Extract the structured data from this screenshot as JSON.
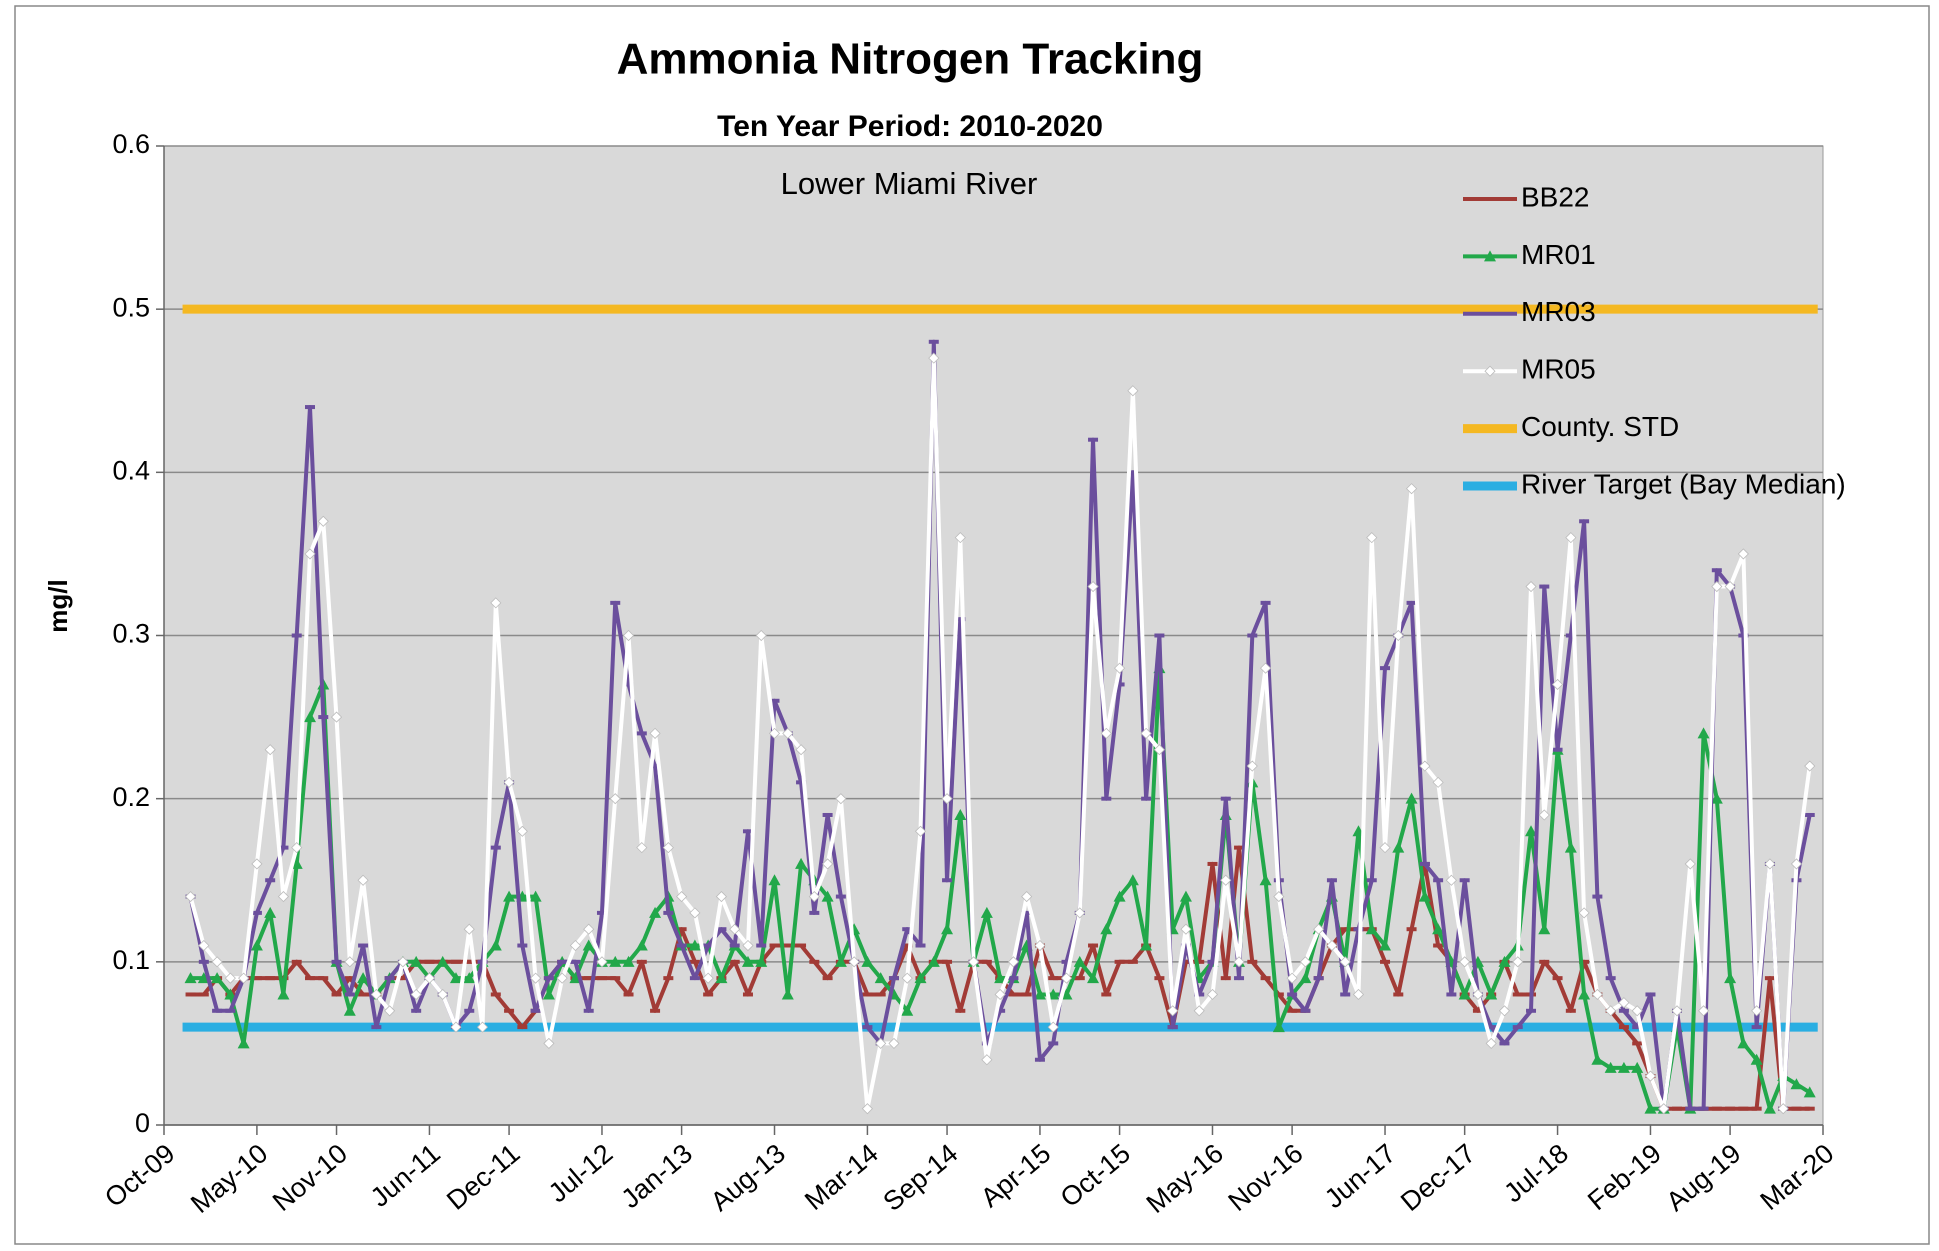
{
  "chart_data": {
    "type": "line",
    "title": "Ammonia Nitrogen Tracking",
    "subtitle": "Ten Year Period:  2010-2020",
    "annotation": "Lower Miami River",
    "y_label": "mg/l",
    "x": [
      "2009-12",
      "2010-01",
      "2010-02",
      "2010-03",
      "2010-04",
      "2010-05",
      "2010-06",
      "2010-07",
      "2010-08",
      "2010-09",
      "2010-10",
      "2010-11",
      "2010-12",
      "2011-01",
      "2011-02",
      "2011-03",
      "2011-04",
      "2011-05",
      "2011-06",
      "2011-07",
      "2011-08",
      "2011-09",
      "2011-10",
      "2011-11",
      "2011-12",
      "2012-01",
      "2012-02",
      "2012-03",
      "2012-04",
      "2012-05",
      "2012-06",
      "2012-07",
      "2012-08",
      "2012-09",
      "2012-10",
      "2012-11",
      "2012-12",
      "2013-01",
      "2013-02",
      "2013-03",
      "2013-04",
      "2013-05",
      "2013-06",
      "2013-07",
      "2013-08",
      "2013-09",
      "2013-10",
      "2013-11",
      "2013-12",
      "2014-01",
      "2014-02",
      "2014-03",
      "2014-04",
      "2014-05",
      "2014-06",
      "2014-07",
      "2014-08",
      "2014-09",
      "2014-10",
      "2014-11",
      "2014-12",
      "2015-01",
      "2015-02",
      "2015-03",
      "2015-04",
      "2015-05",
      "2015-06",
      "2015-07",
      "2015-08",
      "2015-09",
      "2015-10",
      "2015-11",
      "2015-12",
      "2016-01",
      "2016-02",
      "2016-03",
      "2016-04",
      "2016-05",
      "2016-06",
      "2016-07",
      "2016-08",
      "2016-09",
      "2016-10",
      "2016-11",
      "2016-12",
      "2017-01",
      "2017-02",
      "2017-03",
      "2017-04",
      "2017-05",
      "2017-06",
      "2017-07",
      "2017-08",
      "2017-09",
      "2017-10",
      "2017-11",
      "2017-12",
      "2018-01",
      "2018-02",
      "2018-03",
      "2018-04",
      "2018-05",
      "2018-06",
      "2018-07",
      "2018-08",
      "2018-09",
      "2018-10",
      "2018-11",
      "2018-12",
      "2019-01",
      "2019-02",
      "2019-03",
      "2019-04",
      "2019-05",
      "2019-06",
      "2019-07",
      "2019-08",
      "2019-09",
      "2019-10",
      "2019-11",
      "2019-12",
      "2020-01",
      "2020-02"
    ],
    "series": [
      {
        "name": "BB22",
        "color": "#a23b36",
        "marker": "dash",
        "values": [
          0.08,
          0.08,
          0.09,
          0.08,
          0.09,
          0.09,
          0.09,
          0.09,
          0.1,
          0.09,
          0.09,
          0.08,
          0.09,
          0.08,
          0.08,
          0.09,
          0.09,
          0.1,
          0.1,
          0.1,
          0.1,
          0.1,
          0.1,
          0.08,
          0.07,
          0.06,
          0.07,
          0.09,
          0.1,
          0.09,
          0.09,
          0.09,
          0.09,
          0.08,
          0.1,
          0.07,
          0.09,
          0.12,
          0.1,
          0.08,
          0.09,
          0.1,
          0.08,
          0.1,
          0.11,
          0.11,
          0.11,
          0.1,
          0.09,
          0.1,
          0.1,
          0.08,
          0.08,
          0.09,
          0.11,
          0.09,
          0.1,
          0.1,
          0.07,
          0.1,
          0.1,
          0.09,
          0.08,
          0.08,
          0.11,
          0.09,
          0.09,
          0.09,
          0.11,
          0.08,
          0.1,
          0.1,
          0.11,
          0.09,
          0.06,
          0.1,
          0.1,
          0.16,
          0.09,
          0.17,
          0.1,
          0.09,
          0.08,
          0.07,
          0.07,
          0.09,
          0.11,
          0.12,
          0.12,
          0.12,
          0.1,
          0.08,
          0.12,
          0.16,
          0.11,
          0.1,
          0.08,
          0.07,
          0.08,
          0.1,
          0.08,
          0.08,
          0.1,
          0.09,
          0.07,
          0.1,
          0.08,
          0.07,
          0.06,
          0.05,
          0.03,
          0.01,
          0.01,
          0.01,
          0.01,
          0.01,
          0.01,
          0.01,
          0.01,
          0.09,
          0.01,
          0.01,
          0.01
        ]
      },
      {
        "name": "MR01",
        "color": "#22a84a",
        "marker": "triangle",
        "values": [
          0.09,
          0.09,
          0.09,
          0.08,
          0.05,
          0.11,
          0.13,
          0.08,
          0.16,
          0.25,
          0.27,
          0.1,
          0.07,
          0.09,
          0.08,
          0.09,
          0.1,
          0.1,
          0.09,
          0.1,
          0.09,
          0.09,
          0.1,
          0.11,
          0.14,
          0.14,
          0.14,
          0.08,
          0.1,
          0.09,
          0.11,
          0.1,
          0.1,
          0.1,
          0.11,
          0.13,
          0.14,
          0.11,
          0.11,
          0.11,
          0.09,
          0.11,
          0.1,
          0.1,
          0.15,
          0.08,
          0.16,
          0.15,
          0.14,
          0.1,
          0.12,
          0.1,
          0.09,
          0.08,
          0.07,
          0.09,
          0.1,
          0.12,
          0.19,
          0.1,
          0.13,
          0.09,
          0.09,
          0.11,
          0.08,
          0.08,
          0.08,
          0.1,
          0.09,
          0.12,
          0.14,
          0.15,
          0.11,
          0.28,
          0.12,
          0.14,
          0.09,
          0.1,
          0.19,
          0.1,
          0.21,
          0.15,
          0.06,
          0.08,
          0.09,
          0.12,
          0.14,
          0.1,
          0.18,
          0.12,
          0.11,
          0.17,
          0.2,
          0.14,
          0.12,
          0.1,
          0.08,
          0.1,
          0.08,
          0.1,
          0.11,
          0.18,
          0.12,
          0.23,
          0.17,
          0.08,
          0.04,
          0.035,
          0.035,
          0.035,
          0.01,
          0.01,
          0.06,
          0.01,
          0.24,
          0.2,
          0.09,
          0.05,
          0.04,
          0.01,
          0.03,
          0.025,
          0.02
        ]
      },
      {
        "name": "MR03",
        "color": "#6b4f9d",
        "marker": "dash",
        "values": [
          0.14,
          0.1,
          0.07,
          0.07,
          0.09,
          0.13,
          0.15,
          0.17,
          0.3,
          0.44,
          0.25,
          0.1,
          0.08,
          0.11,
          0.06,
          0.09,
          0.1,
          0.07,
          0.09,
          0.08,
          0.06,
          0.07,
          0.1,
          0.17,
          0.21,
          0.11,
          0.07,
          0.09,
          0.1,
          0.1,
          0.07,
          0.13,
          0.32,
          0.27,
          0.24,
          0.22,
          0.13,
          0.11,
          0.09,
          0.11,
          0.12,
          0.11,
          0.18,
          0.11,
          0.26,
          0.24,
          0.21,
          0.13,
          0.19,
          0.14,
          0.1,
          0.06,
          0.05,
          0.09,
          0.12,
          0.11,
          0.48,
          0.15,
          0.31,
          0.1,
          0.05,
          0.07,
          0.09,
          0.13,
          0.04,
          0.05,
          0.1,
          0.13,
          0.42,
          0.2,
          0.27,
          0.4,
          0.2,
          0.3,
          0.06,
          0.11,
          0.08,
          0.1,
          0.2,
          0.09,
          0.3,
          0.32,
          0.15,
          0.08,
          0.07,
          0.09,
          0.15,
          0.08,
          0.12,
          0.15,
          0.28,
          0.3,
          0.32,
          0.16,
          0.15,
          0.08,
          0.15,
          0.08,
          0.06,
          0.05,
          0.06,
          0.07,
          0.33,
          0.23,
          0.3,
          0.37,
          0.14,
          0.09,
          0.07,
          0.06,
          0.08,
          0.01,
          0.07,
          0.01,
          0.01,
          0.34,
          0.33,
          0.3,
          0.06,
          0.16,
          0.01,
          0.15,
          0.19
        ]
      },
      {
        "name": "MR05",
        "color": "#ffffff",
        "marker": "diamond",
        "values": [
          0.14,
          0.11,
          0.1,
          0.09,
          0.09,
          0.16,
          0.23,
          0.14,
          0.17,
          0.35,
          0.37,
          0.25,
          0.1,
          0.15,
          0.08,
          0.07,
          0.1,
          0.08,
          0.09,
          0.08,
          0.06,
          0.12,
          0.06,
          0.32,
          0.21,
          0.18,
          0.09,
          0.05,
          0.09,
          0.11,
          0.12,
          0.1,
          0.2,
          0.3,
          0.17,
          0.24,
          0.17,
          0.14,
          0.13,
          0.09,
          0.14,
          0.12,
          0.11,
          0.3,
          0.24,
          0.24,
          0.23,
          0.14,
          0.16,
          0.2,
          0.1,
          0.01,
          0.05,
          0.05,
          0.09,
          0.18,
          0.47,
          0.2,
          0.36,
          0.1,
          0.04,
          0.08,
          0.1,
          0.14,
          0.11,
          0.06,
          0.09,
          0.13,
          0.33,
          0.24,
          0.28,
          0.45,
          0.24,
          0.23,
          0.07,
          0.12,
          0.07,
          0.08,
          0.15,
          0.1,
          0.22,
          0.28,
          0.14,
          0.09,
          0.1,
          0.12,
          0.11,
          0.1,
          0.08,
          0.36,
          0.17,
          0.3,
          0.39,
          0.22,
          0.21,
          0.15,
          0.1,
          0.08,
          0.05,
          0.07,
          0.1,
          0.33,
          0.19,
          0.27,
          0.36,
          0.13,
          0.08,
          0.07,
          0.075,
          0.07,
          0.03,
          0.01,
          0.07,
          0.16,
          0.07,
          0.33,
          0.33,
          0.35,
          0.07,
          0.16,
          0.01,
          0.16,
          0.22
        ]
      }
    ],
    "reference_lines": [
      {
        "name": "County. STD",
        "color": "#f4b822",
        "value": 0.5
      },
      {
        "name": "River Target (Bay Median)",
        "color": "#2aaee2",
        "value": 0.06
      }
    ],
    "xlim": [
      "2009-10",
      "2020-03"
    ],
    "xticks": [
      {
        "value": "2009-10",
        "label": "Oct-09"
      },
      {
        "value": "2010-05",
        "label": "May-10"
      },
      {
        "value": "2010-11",
        "label": "Nov-10"
      },
      {
        "value": "2011-06",
        "label": "Jun-11"
      },
      {
        "value": "2011-12",
        "label": "Dec-11"
      },
      {
        "value": "2012-07",
        "label": "Jul-12"
      },
      {
        "value": "2013-01",
        "label": "Jan-13"
      },
      {
        "value": "2013-08",
        "label": "Aug-13"
      },
      {
        "value": "2014-03",
        "label": "Mar-14"
      },
      {
        "value": "2014-09",
        "label": "Sep-14"
      },
      {
        "value": "2015-04",
        "label": "Apr-15"
      },
      {
        "value": "2015-10",
        "label": "Oct-15"
      },
      {
        "value": "2016-05",
        "label": "May-16"
      },
      {
        "value": "2016-11",
        "label": "Nov-16"
      },
      {
        "value": "2017-06",
        "label": "Jun-17"
      },
      {
        "value": "2017-12",
        "label": "Dec-17"
      },
      {
        "value": "2018-07",
        "label": "Jul-18"
      },
      {
        "value": "2019-02",
        "label": "Feb-19"
      },
      {
        "value": "2019-08",
        "label": "Aug-19"
      },
      {
        "value": "2020-03",
        "label": "Mar-20"
      }
    ],
    "ylim": [
      0,
      0.6
    ],
    "yticks": [
      0,
      0.1,
      0.2,
      0.3,
      0.4,
      0.5,
      0.6
    ],
    "grid": true,
    "legend": "upper right"
  }
}
